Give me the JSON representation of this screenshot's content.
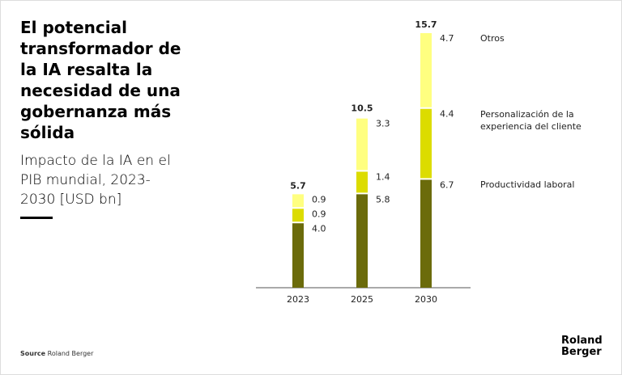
{
  "title": "El potencial transformador de la IA resalta la necesidad de una gobernanza más sólida",
  "subtitle": "Impacto de la IA en el PIB mundial, 2023-2030 [USD bn]",
  "source": {
    "label": "Source",
    "text": "Roland Berger"
  },
  "logo": [
    "Roland",
    "Berger"
  ],
  "chart_data": {
    "type": "stacked-bar",
    "categories": [
      "2023",
      "2025",
      "2030"
    ],
    "totals": [
      5.7,
      10.5,
      15.7
    ],
    "series": [
      {
        "name": "Productividad laboral",
        "color": "#6b6b0b",
        "values": [
          4.0,
          5.8,
          6.7
        ],
        "value_labels": [
          "4.0",
          "5.8",
          "6.7"
        ]
      },
      {
        "name": "Personalización de la experiencia del cliente",
        "color": "#dcdc00",
        "values": [
          0.9,
          1.4,
          4.4
        ]
      },
      {
        "name": "Otros",
        "color": "#ffff80",
        "values": [
          0.9,
          3.3,
          4.7
        ]
      }
    ]
  }
}
